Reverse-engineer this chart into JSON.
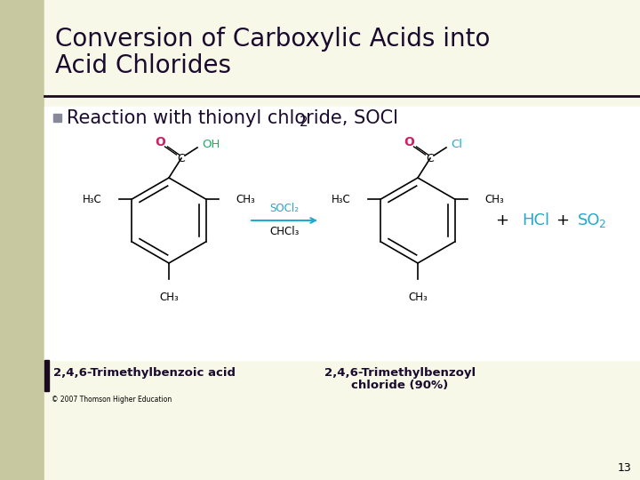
{
  "title_line1": "Conversion of Carboxylic Acids into",
  "title_line2": "Acid Chlorides",
  "title_color": "#1a0a2e",
  "title_fontsize": 20,
  "bullet_text": "Reaction with thionyl chloride, SOCl",
  "bullet_sub": "2",
  "bullet_fontsize": 15,
  "bullet_color": "#1a0a2e",
  "bullet_square_color": "#888899",
  "bg_slide": "#f8f8e8",
  "bg_left_panel": "#c8c8a0",
  "bg_image": "#ffffff",
  "title_bar_color": "#1a0a1e",
  "separator_color": "#1a0a1e",
  "label1": "2,4,6-Trimethylbenzoic acid",
  "label2_line1": "2,4,6-Trimethylbenzoyl",
  "label2_line2": "chloride (90%)",
  "label_fontsize": 9.5,
  "label_color": "#1a0a2e",
  "copyright": "© 2007 Thomson Higher Education",
  "copyright_fontsize": 5.5,
  "page_num": "13",
  "page_fontsize": 9,
  "reagent_color": "#22aacc",
  "O_color": "#cc2266",
  "OH_color": "#22aa66",
  "Cl_color": "#22aacc",
  "HCl_color": "#22aacc",
  "SO2_color": "#22aacc",
  "black": "#000000",
  "arrow_color": "#22aacc",
  "plus_color": "#000000"
}
